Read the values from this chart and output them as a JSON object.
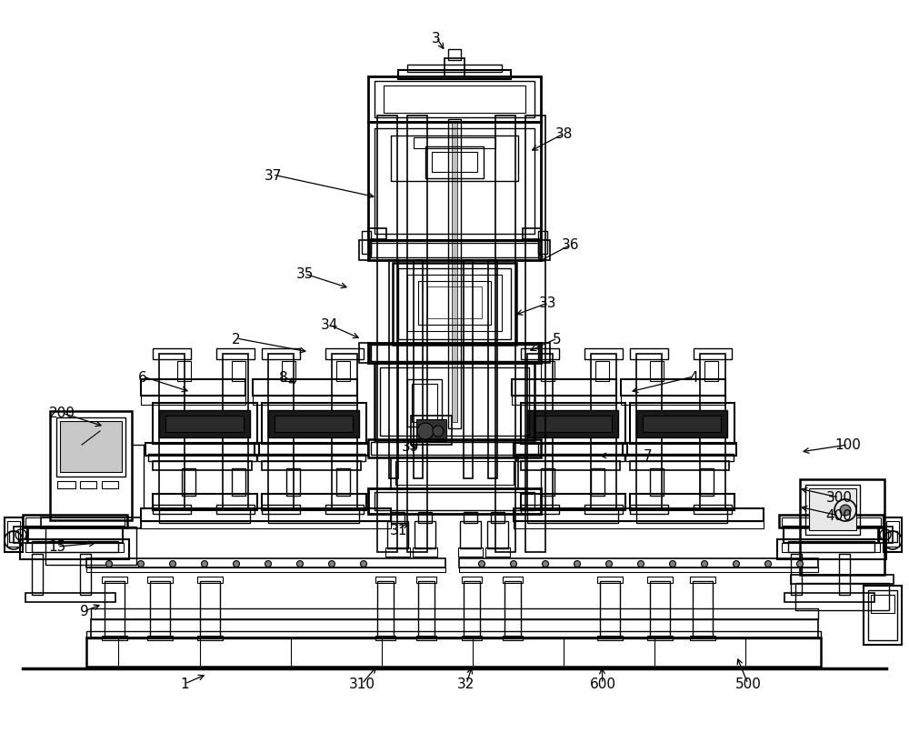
{
  "bg_color": "#ffffff",
  "annotations": [
    [
      "3",
      480,
      42,
      490,
      58,
      true
    ],
    [
      "38",
      620,
      148,
      582,
      168,
      false
    ],
    [
      "37",
      300,
      193,
      415,
      218,
      false
    ],
    [
      "36",
      628,
      270,
      590,
      290,
      false
    ],
    [
      "35",
      335,
      302,
      385,
      318,
      false
    ],
    [
      "34",
      362,
      358,
      398,
      374,
      false
    ],
    [
      "33",
      603,
      334,
      565,
      348,
      false
    ],
    [
      "2",
      260,
      373,
      340,
      388,
      false
    ],
    [
      "5",
      613,
      373,
      580,
      388,
      false
    ],
    [
      "8",
      312,
      415,
      328,
      424,
      false
    ],
    [
      "6",
      157,
      415,
      210,
      432,
      false
    ],
    [
      "200",
      68,
      455,
      115,
      470,
      false
    ],
    [
      "4",
      763,
      415,
      692,
      432,
      false
    ],
    [
      "39",
      452,
      492,
      462,
      495,
      false
    ],
    [
      "7",
      713,
      502,
      657,
      502,
      false
    ],
    [
      "100",
      933,
      490,
      880,
      498,
      false
    ],
    [
      "300",
      923,
      548,
      878,
      538,
      false
    ],
    [
      "400",
      923,
      568,
      878,
      558,
      false
    ],
    [
      "15",
      63,
      602,
      108,
      598,
      false
    ],
    [
      "31",
      438,
      583,
      452,
      574,
      false
    ],
    [
      "9",
      93,
      673,
      113,
      665,
      false
    ],
    [
      "1",
      203,
      753,
      228,
      742,
      false
    ],
    [
      "310",
      398,
      753,
      416,
      732,
      false
    ],
    [
      "32",
      513,
      753,
      520,
      732,
      false
    ],
    [
      "600",
      663,
      753,
      662,
      732,
      false
    ],
    [
      "500",
      823,
      753,
      810,
      722,
      false
    ]
  ]
}
